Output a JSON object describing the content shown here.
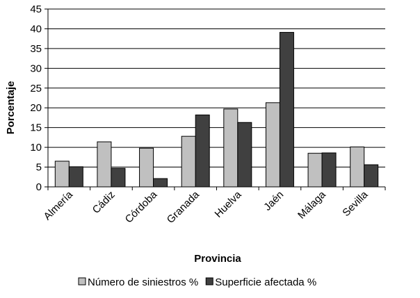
{
  "chart_data": {
    "type": "bar",
    "title": "",
    "xlabel": "Provincia",
    "ylabel": "Porcentaje",
    "ylim": [
      0,
      45
    ],
    "yticks": [
      0,
      5,
      10,
      15,
      20,
      25,
      30,
      35,
      40,
      45
    ],
    "grid": true,
    "legend_position": "bottom",
    "categories": [
      "Almería",
      "Cádiz",
      "Córdoba",
      "Granada",
      "Huelva",
      "Jaén",
      "Málaga",
      "Sevilla"
    ],
    "series": [
      {
        "name": "Número de siniestros %",
        "color": "#c0c0c0",
        "values": [
          6.5,
          11.4,
          9.8,
          12.8,
          19.7,
          21.3,
          8.5,
          10.1
        ]
      },
      {
        "name": "Superficie afectada %",
        "color": "#404040",
        "values": [
          5.1,
          4.7,
          2.1,
          18.2,
          16.3,
          39.1,
          8.6,
          5.6
        ]
      }
    ]
  }
}
